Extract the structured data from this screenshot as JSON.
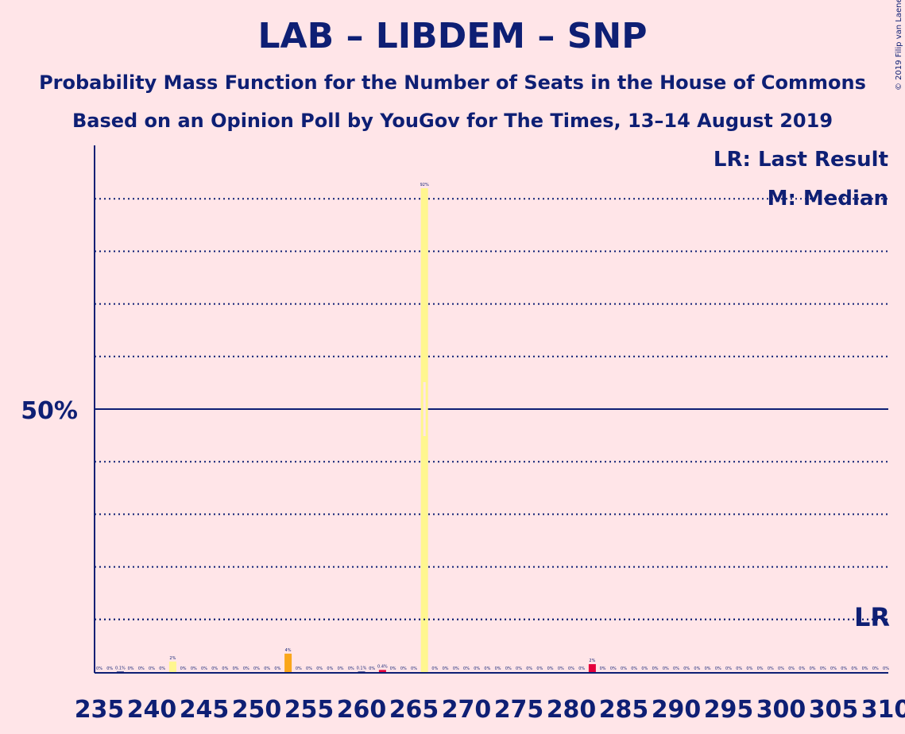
{
  "header": {
    "title": "LAB – LIBDEM – SNP",
    "subtitle1": "Probability Mass Function for the Number of Seats in the House of Commons",
    "subtitle2": "Based on an Opinion Poll by YouGov for The Times, 13–14 August 2019",
    "copyright": "© 2019 Filip van Laenen"
  },
  "chart_data": {
    "type": "bar",
    "x_min": 235,
    "x_max": 310,
    "xticks": [
      235,
      240,
      245,
      250,
      255,
      260,
      265,
      270,
      275,
      280,
      285,
      290,
      295,
      300,
      305,
      310
    ],
    "ylim": [
      0,
      100
    ],
    "y_label_50": "50%",
    "grid": "dotted every 10%",
    "bars": [
      {
        "x": 235,
        "value": 0,
        "label": "0%"
      },
      {
        "x": 236,
        "value": 0,
        "label": "0%"
      },
      {
        "x": 237,
        "value": 0.1,
        "label": "0.1%"
      },
      {
        "x": 238,
        "value": 0,
        "label": "0%"
      },
      {
        "x": 239,
        "value": 0,
        "label": "0%"
      },
      {
        "x": 240,
        "value": 0,
        "label": "0%"
      },
      {
        "x": 241,
        "value": 0,
        "label": "0%"
      },
      {
        "x": 242,
        "value": 2,
        "label": "2%",
        "color": "#FFF68F"
      },
      {
        "x": 243,
        "value": 0,
        "label": "0%"
      },
      {
        "x": 244,
        "value": 0,
        "label": "0%"
      },
      {
        "x": 245,
        "value": 0,
        "label": "0%"
      },
      {
        "x": 246,
        "value": 0,
        "label": "0%"
      },
      {
        "x": 247,
        "value": 0,
        "label": "0%"
      },
      {
        "x": 248,
        "value": 0,
        "label": "0%"
      },
      {
        "x": 249,
        "value": 0,
        "label": "0%"
      },
      {
        "x": 250,
        "value": 0,
        "label": "0%"
      },
      {
        "x": 251,
        "value": 0,
        "label": "0%"
      },
      {
        "x": 252,
        "value": 0,
        "label": "0%"
      },
      {
        "x": 253,
        "value": 3.5,
        "label": "4%",
        "color": "#FAA61A"
      },
      {
        "x": 254,
        "value": 0,
        "label": "0%"
      },
      {
        "x": 255,
        "value": 0,
        "label": "0%"
      },
      {
        "x": 256,
        "value": 0,
        "label": "0%"
      },
      {
        "x": 257,
        "value": 0,
        "label": "0%"
      },
      {
        "x": 258,
        "value": 0,
        "label": "0%"
      },
      {
        "x": 259,
        "value": 0,
        "label": "0%"
      },
      {
        "x": 260,
        "value": 0.1,
        "label": "0.1%"
      },
      {
        "x": 261,
        "value": 0,
        "label": "0%"
      },
      {
        "x": 262,
        "value": 0.4,
        "label": "0.4%",
        "color": "#E4003B"
      },
      {
        "x": 263,
        "value": 0,
        "label": "0%"
      },
      {
        "x": 264,
        "value": 0,
        "label": "0%"
      },
      {
        "x": 265,
        "value": 0,
        "label": "0%"
      },
      {
        "x": 266,
        "value": 92,
        "label": "92%",
        "color": "#FFF68F",
        "median": true
      },
      {
        "x": 267,
        "value": 0,
        "label": "0%"
      },
      {
        "x": 268,
        "value": 0,
        "label": "0%"
      },
      {
        "x": 269,
        "value": 0,
        "label": "0%"
      },
      {
        "x": 270,
        "value": 0,
        "label": "0%"
      },
      {
        "x": 271,
        "value": 0,
        "label": "0%"
      },
      {
        "x": 272,
        "value": 0,
        "label": "0%"
      },
      {
        "x": 273,
        "value": 0,
        "label": "0%"
      },
      {
        "x": 274,
        "value": 0,
        "label": "0%"
      },
      {
        "x": 275,
        "value": 0,
        "label": "0%"
      },
      {
        "x": 276,
        "value": 0,
        "label": "0%"
      },
      {
        "x": 277,
        "value": 0,
        "label": "0%"
      },
      {
        "x": 278,
        "value": 0,
        "label": "0%"
      },
      {
        "x": 279,
        "value": 0,
        "label": "0%"
      },
      {
        "x": 280,
        "value": 0,
        "label": "0%"
      },
      {
        "x": 281,
        "value": 0,
        "label": "0%"
      },
      {
        "x": 282,
        "value": 1.5,
        "label": "2%",
        "color": "#E4003B"
      },
      {
        "x": 283,
        "value": 0,
        "label": "0%"
      },
      {
        "x": 284,
        "value": 0,
        "label": "0%"
      },
      {
        "x": 285,
        "value": 0,
        "label": "0%"
      },
      {
        "x": 286,
        "value": 0,
        "label": "0%"
      },
      {
        "x": 287,
        "value": 0,
        "label": "0%"
      },
      {
        "x": 288,
        "value": 0,
        "label": "0%"
      },
      {
        "x": 289,
        "value": 0,
        "label": "0%"
      },
      {
        "x": 290,
        "value": 0,
        "label": "0%"
      },
      {
        "x": 291,
        "value": 0,
        "label": "0%"
      },
      {
        "x": 292,
        "value": 0,
        "label": "0%"
      },
      {
        "x": 293,
        "value": 0,
        "label": "0%"
      },
      {
        "x": 294,
        "value": 0,
        "label": "0%"
      },
      {
        "x": 295,
        "value": 0,
        "label": "0%"
      },
      {
        "x": 296,
        "value": 0,
        "label": "0%"
      },
      {
        "x": 297,
        "value": 0,
        "label": "0%"
      },
      {
        "x": 298,
        "value": 0,
        "label": "0%"
      },
      {
        "x": 299,
        "value": 0,
        "label": "0%"
      },
      {
        "x": 300,
        "value": 0,
        "label": "0%"
      },
      {
        "x": 301,
        "value": 0,
        "label": "0%"
      },
      {
        "x": 302,
        "value": 0,
        "label": "0%"
      },
      {
        "x": 303,
        "value": 0,
        "label": "0%"
      },
      {
        "x": 304,
        "value": 0,
        "label": "0%"
      },
      {
        "x": 305,
        "value": 0,
        "label": "0%"
      },
      {
        "x": 306,
        "value": 0,
        "label": "0%"
      },
      {
        "x": 307,
        "value": 0,
        "label": "0%"
      },
      {
        "x": 308,
        "value": 0,
        "label": "0%"
      },
      {
        "x": 309,
        "value": 0,
        "label": "0%"
      },
      {
        "x": 310,
        "value": 0,
        "label": "0%"
      }
    ],
    "last_result": {
      "x": 310,
      "label": "LR"
    },
    "legend": {
      "placement": "top-right",
      "last_result": "LR: Last Result",
      "median": "M: Median"
    }
  },
  "colors": {
    "background": "#FFE5E8",
    "text": "#0E1F74",
    "median_marker": "#FFE5E8"
  }
}
